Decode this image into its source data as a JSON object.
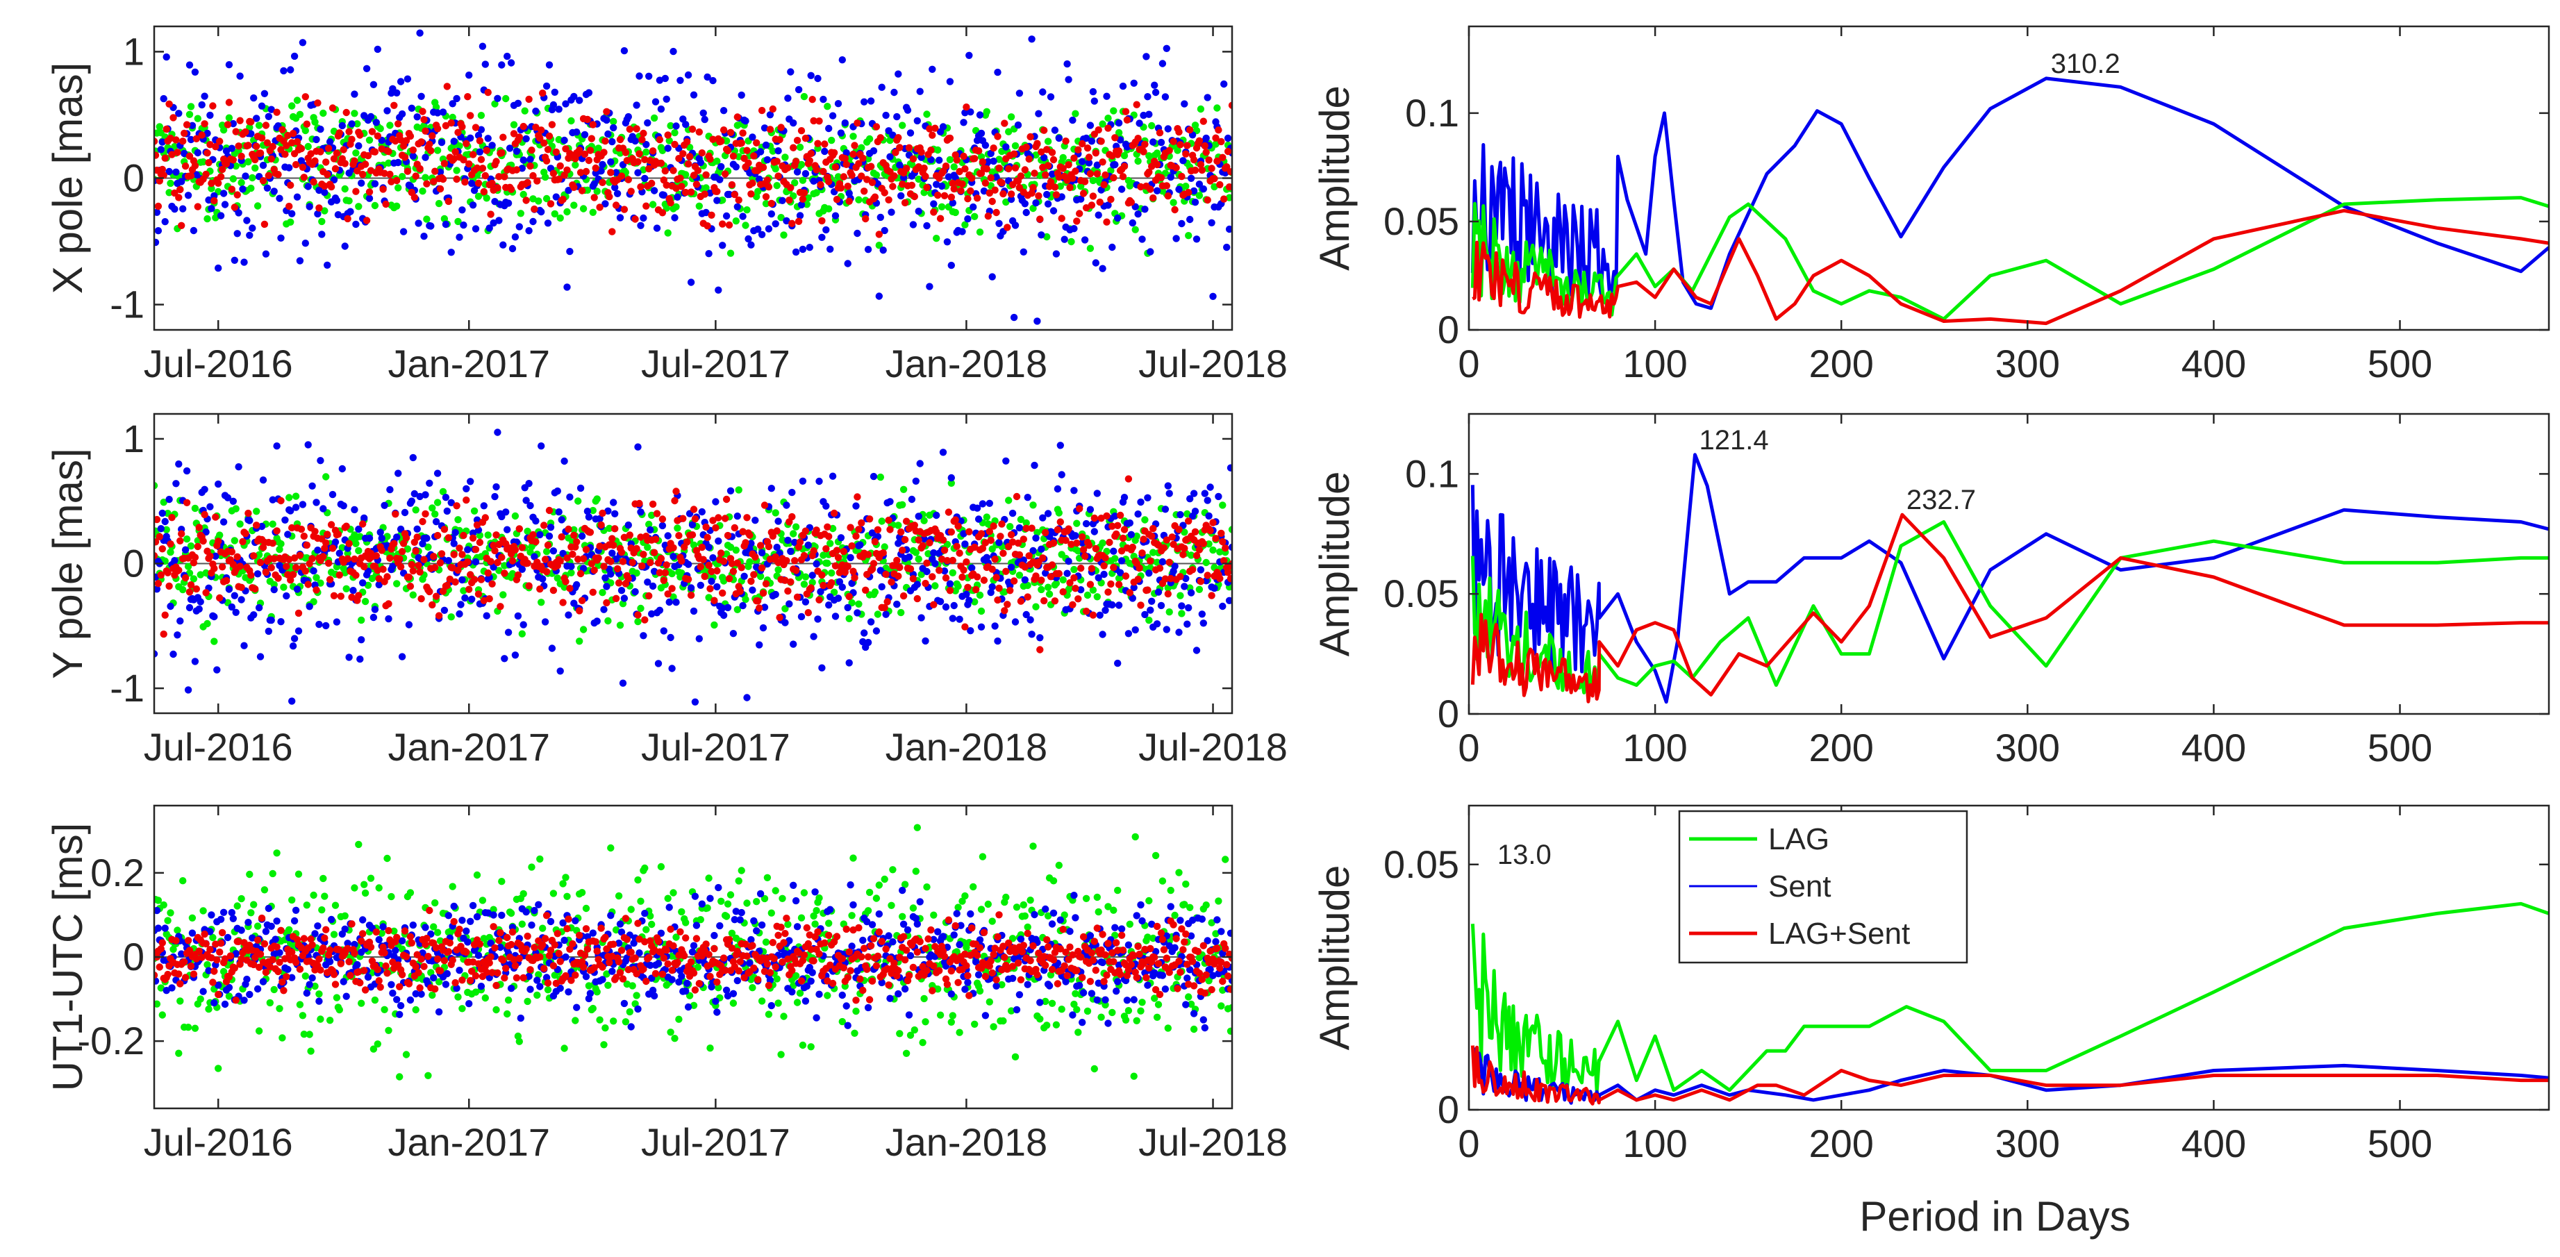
{
  "colors": {
    "lag": "#00ee00",
    "sent": "#0000ee",
    "lagsent": "#ee0000",
    "axis": "#262626",
    "zero_line": "#555555"
  },
  "legend": {
    "entries": [
      "LAG",
      "Sent",
      "LAG+Sent"
    ]
  },
  "chart_data": [
    {
      "id": "xpole-series",
      "type": "scatter",
      "ylabel": "X pole [mas]",
      "xlabel": "",
      "x_tick_labels": [
        "Jul-2016",
        "Jan-2017",
        "Jul-2017",
        "Jan-2018",
        "Jul-2018"
      ],
      "x_range": [
        "2016-05-15",
        "2018-07-15"
      ],
      "ylim": [
        -1.2,
        1.2
      ],
      "yticks": [
        -1,
        0,
        1
      ],
      "series": [
        {
          "name": "LAG",
          "color": "#00ee00",
          "y_offset": 0.1,
          "y_spread": 0.22
        },
        {
          "name": "Sent",
          "color": "#0000ee",
          "y_offset": 0.1,
          "y_spread": 0.38
        },
        {
          "name": "LAG+Sent",
          "color": "#ee0000",
          "y_offset": 0.12,
          "y_spread": 0.2
        }
      ]
    },
    {
      "id": "ypole-series",
      "type": "scatter",
      "ylabel": "Y pole [mas]",
      "xlabel": "",
      "x_tick_labels": [
        "Jul-2016",
        "Jan-2017",
        "Jul-2017",
        "Jan-2018",
        "Jul-2018"
      ],
      "x_range": [
        "2016-05-15",
        "2018-07-15"
      ],
      "ylim": [
        -1.2,
        1.2
      ],
      "yticks": [
        -1,
        0,
        1
      ],
      "series": [
        {
          "name": "LAG",
          "color": "#00ee00",
          "y_offset": 0.05,
          "y_spread": 0.22
        },
        {
          "name": "Sent",
          "color": "#0000ee",
          "y_offset": 0.05,
          "y_spread": 0.38
        },
        {
          "name": "LAG+Sent",
          "color": "#ee0000",
          "y_offset": 0.05,
          "y_spread": 0.2
        }
      ]
    },
    {
      "id": "ut1-series",
      "type": "scatter",
      "ylabel": "UT1-UTC [ms]",
      "xlabel": "",
      "x_tick_labels": [
        "Jul-2016",
        "Jan-2017",
        "Jul-2017",
        "Jan-2018",
        "Jul-2018"
      ],
      "x_range": [
        "2016-05-15",
        "2018-07-15"
      ],
      "ylim": [
        -0.36,
        0.36
      ],
      "yticks": [
        -0.2,
        0,
        0.2
      ],
      "ytick_labels": [
        "-0.2",
        "0",
        "0.2"
      ],
      "series": [
        {
          "name": "LAG",
          "color": "#00ee00",
          "y_offset": 0.0,
          "y_spread": 0.1
        },
        {
          "name": "Sent",
          "color": "#0000ee",
          "y_offset": 0.0,
          "y_spread": 0.06
        },
        {
          "name": "LAG+Sent",
          "color": "#ee0000",
          "y_offset": 0.0,
          "y_spread": 0.035
        }
      ]
    },
    {
      "id": "xpole-spectrum",
      "type": "line",
      "ylabel": "Amplitude",
      "xlabel": "",
      "xlim": [
        0,
        580
      ],
      "ylim": [
        0,
        0.14
      ],
      "xticks": [
        0,
        100,
        200,
        300,
        400,
        500
      ],
      "yticks": [
        0,
        0.05,
        0.1
      ],
      "ytick_labels": [
        "0",
        "0.05",
        "0.1"
      ],
      "annotations": [
        {
          "text": "310.2",
          "x": 310.2,
          "y": 0.116
        }
      ],
      "series": [
        {
          "name": "Sent",
          "color": "#0000ee",
          "x": [
            80,
            85,
            95,
            100,
            105,
            110,
            115,
            122,
            130,
            140,
            160,
            175,
            187,
            200,
            215,
            232,
            255,
            280,
            310,
            350,
            400,
            470,
            520,
            565,
            580
          ],
          "y": [
            0.08,
            0.06,
            0.035,
            0.08,
            0.1,
            0.06,
            0.022,
            0.012,
            0.01,
            0.035,
            0.072,
            0.085,
            0.101,
            0.095,
            0.07,
            0.043,
            0.075,
            0.102,
            0.116,
            0.112,
            0.095,
            0.057,
            0.04,
            0.027,
            0.038
          ]
        },
        {
          "name": "LAG",
          "color": "#00ee00",
          "x": [
            80,
            90,
            100,
            110,
            120,
            130,
            140,
            150,
            170,
            185,
            200,
            215,
            232,
            255,
            280,
            310,
            350,
            400,
            470,
            520,
            565,
            580
          ],
          "y": [
            0.025,
            0.035,
            0.02,
            0.028,
            0.018,
            0.035,
            0.052,
            0.058,
            0.042,
            0.018,
            0.012,
            0.018,
            0.015,
            0.005,
            0.025,
            0.032,
            0.012,
            0.028,
            0.058,
            0.06,
            0.061,
            0.057
          ]
        },
        {
          "name": "LAG+Sent",
          "color": "#ee0000",
          "x": [
            80,
            90,
            100,
            110,
            122,
            130,
            145,
            155,
            165,
            175,
            185,
            200,
            215,
            232,
            255,
            280,
            310,
            350,
            400,
            470,
            520,
            565,
            580
          ],
          "y": [
            0.02,
            0.022,
            0.015,
            0.028,
            0.015,
            0.012,
            0.042,
            0.025,
            0.005,
            0.012,
            0.025,
            0.032,
            0.025,
            0.012,
            0.004,
            0.005,
            0.003,
            0.018,
            0.042,
            0.055,
            0.047,
            0.042,
            0.04
          ]
        }
      ]
    },
    {
      "id": "ypole-spectrum",
      "type": "line",
      "ylabel": "Amplitude",
      "xlabel": "",
      "xlim": [
        0,
        580
      ],
      "ylim": [
        0,
        0.125
      ],
      "xticks": [
        0,
        100,
        200,
        300,
        400,
        500
      ],
      "yticks": [
        0,
        0.05,
        0.1
      ],
      "ytick_labels": [
        "0",
        "0.05",
        "0.1"
      ],
      "annotations": [
        {
          "text": "121.4",
          "x": 121.4,
          "y": 0.108
        },
        {
          "text": "232.7",
          "x": 232.7,
          "y": 0.083
        }
      ],
      "series": [
        {
          "name": "Sent",
          "color": "#0000ee",
          "x": [
            70,
            80,
            90,
            100,
            106,
            112,
            118,
            121.4,
            128,
            140,
            150,
            165,
            180,
            200,
            215,
            232,
            255,
            280,
            310,
            350,
            400,
            470,
            520,
            565,
            580
          ],
          "y": [
            0.04,
            0.05,
            0.03,
            0.018,
            0.005,
            0.03,
            0.08,
            0.108,
            0.095,
            0.05,
            0.055,
            0.055,
            0.065,
            0.065,
            0.072,
            0.063,
            0.023,
            0.06,
            0.075,
            0.06,
            0.065,
            0.085,
            0.082,
            0.08,
            0.077
          ]
        },
        {
          "name": "LAG",
          "color": "#00ee00",
          "x": [
            70,
            80,
            90,
            100,
            110,
            120,
            135,
            150,
            165,
            185,
            200,
            215,
            232,
            255,
            280,
            310,
            350,
            400,
            470,
            520,
            565,
            580
          ],
          "y": [
            0.025,
            0.015,
            0.012,
            0.02,
            0.022,
            0.015,
            0.03,
            0.04,
            0.012,
            0.045,
            0.025,
            0.025,
            0.07,
            0.08,
            0.045,
            0.02,
            0.065,
            0.072,
            0.063,
            0.063,
            0.065,
            0.065
          ]
        },
        {
          "name": "LAG+Sent",
          "color": "#ee0000",
          "x": [
            70,
            80,
            90,
            100,
            110,
            120,
            130,
            145,
            160,
            185,
            200,
            215,
            232.7,
            255,
            280,
            310,
            350,
            400,
            470,
            520,
            565,
            580
          ],
          "y": [
            0.03,
            0.02,
            0.035,
            0.038,
            0.035,
            0.015,
            0.008,
            0.025,
            0.02,
            0.042,
            0.03,
            0.045,
            0.083,
            0.065,
            0.032,
            0.04,
            0.065,
            0.057,
            0.037,
            0.037,
            0.038,
            0.038
          ]
        }
      ]
    },
    {
      "id": "ut1-spectrum",
      "type": "line",
      "ylabel": "Amplitude",
      "xlabel": "Period in Days",
      "xlim": [
        0,
        580
      ],
      "ylim": [
        0,
        0.062
      ],
      "xticks": [
        0,
        100,
        200,
        300,
        400,
        500
      ],
      "yticks": [
        0,
        0.05
      ],
      "ytick_labels": [
        "0",
        "0.05"
      ],
      "annotations": [
        {
          "text": "13.0",
          "x": 13.0,
          "y": 0.049
        }
      ],
      "series": [
        {
          "name": "LAG",
          "color": "#00ee00",
          "x": [
            70,
            80,
            90,
            100,
            110,
            125,
            140,
            150,
            160,
            170,
            180,
            200,
            215,
            235,
            255,
            280,
            310,
            350,
            400,
            470,
            520,
            565,
            580
          ],
          "y": [
            0.01,
            0.018,
            0.006,
            0.015,
            0.004,
            0.008,
            0.004,
            0.008,
            0.012,
            0.012,
            0.017,
            0.017,
            0.017,
            0.021,
            0.018,
            0.008,
            0.008,
            0.015,
            0.024,
            0.037,
            0.04,
            0.042,
            0.04
          ]
        },
        {
          "name": "Sent",
          "color": "#0000ee",
          "x": [
            70,
            80,
            90,
            100,
            110,
            125,
            140,
            150,
            170,
            185,
            200,
            215,
            232,
            255,
            280,
            310,
            350,
            400,
            470,
            520,
            565,
            580
          ],
          "y": [
            0.003,
            0.005,
            0.002,
            0.004,
            0.003,
            0.005,
            0.003,
            0.004,
            0.003,
            0.002,
            0.003,
            0.004,
            0.006,
            0.008,
            0.007,
            0.004,
            0.005,
            0.008,
            0.009,
            0.008,
            0.007,
            0.0065
          ]
        },
        {
          "name": "LAG+Sent",
          "color": "#ee0000",
          "x": [
            70,
            80,
            90,
            100,
            110,
            125,
            140,
            155,
            165,
            180,
            200,
            215,
            232,
            255,
            280,
            310,
            350,
            400,
            470,
            520,
            565,
            580
          ],
          "y": [
            0.002,
            0.004,
            0.002,
            0.003,
            0.002,
            0.004,
            0.002,
            0.005,
            0.005,
            0.003,
            0.008,
            0.006,
            0.005,
            0.007,
            0.007,
            0.005,
            0.005,
            0.007,
            0.007,
            0.007,
            0.006,
            0.006
          ]
        }
      ]
    }
  ]
}
